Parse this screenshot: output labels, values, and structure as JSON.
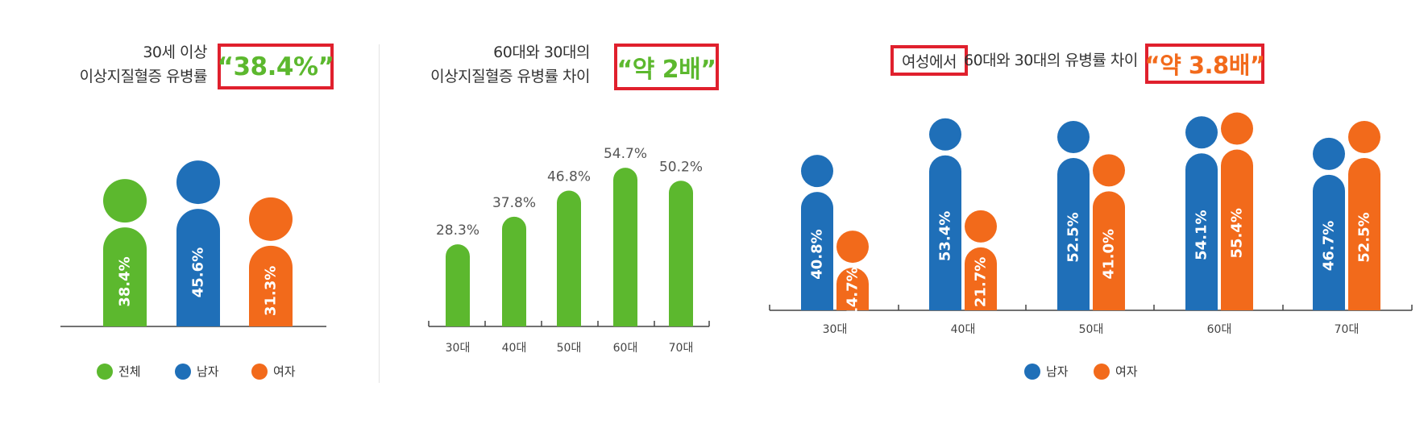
{
  "panel1": {
    "title_line1": "30세 이상",
    "title_line2": "이상지질혈증 유병률",
    "highlight": "“38.4%”"
  },
  "panel2": {
    "title_line1": "60대와 30대의",
    "title_line2": "이상지질혈증 유병률 차이",
    "highlight": "“약 2배”"
  },
  "panel3": {
    "title_box": "여성에서",
    "title_rest": "60대와 30대의 유병률 차이",
    "highlight": "“약 3.8배”"
  },
  "colors": {
    "total": "#5cb82e",
    "male": "#1f6fb8",
    "female": "#f26a1b",
    "highlight_border": "#e0202d"
  },
  "chart_data": [
    {
      "type": "bar",
      "categories": [
        "전체",
        "남자",
        "여자"
      ],
      "values": [
        38.4,
        45.6,
        31.3
      ],
      "value_labels": [
        "38.4%",
        "45.6%",
        "31.3%"
      ],
      "legend": [
        "전체",
        "남자",
        "여자"
      ],
      "legend_position": "bottom"
    },
    {
      "type": "bar",
      "categories": [
        "30대",
        "40대",
        "50대",
        "60대",
        "70대"
      ],
      "values": [
        28.3,
        37.8,
        46.8,
        54.7,
        50.2
      ],
      "value_labels": [
        "28.3%",
        "37.8%",
        "46.8%",
        "54.7%",
        "50.2%"
      ]
    },
    {
      "type": "bar",
      "categories": [
        "30대",
        "40대",
        "50대",
        "60대",
        "70대"
      ],
      "series": [
        {
          "name": "남자",
          "values": [
            40.8,
            53.4,
            52.5,
            54.1,
            46.7
          ],
          "value_labels": [
            "40.8%",
            "53.4%",
            "52.5%",
            "54.1%",
            "46.7%"
          ]
        },
        {
          "name": "여자",
          "values": [
            14.7,
            21.7,
            41.0,
            55.4,
            52.5
          ],
          "value_labels": [
            "14.7%",
            "21.7%",
            "41.0%",
            "55.4%",
            "52.5%"
          ]
        }
      ],
      "legend": [
        "남자",
        "여자"
      ],
      "legend_position": "bottom"
    }
  ]
}
